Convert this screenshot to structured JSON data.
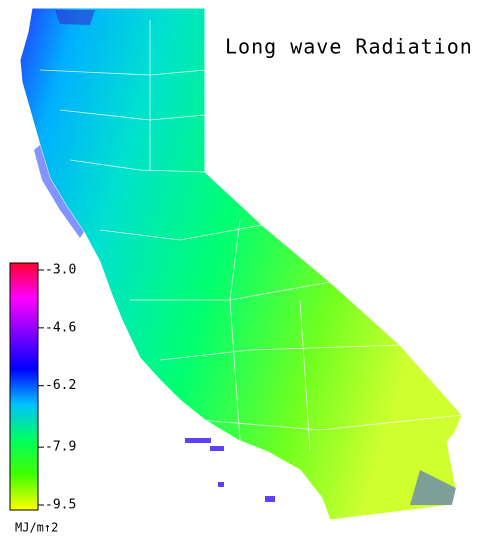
{
  "title": "Long wave Radiation",
  "colorbar": {
    "label": "MJ/m↑2",
    "lim": [
      -9.5,
      -3.0
    ],
    "ticks": [
      {
        "value": -3.0,
        "label": "-3.0"
      },
      {
        "value": -4.6,
        "label": "-4.6"
      },
      {
        "value": -6.2,
        "label": "-6.2"
      },
      {
        "value": -7.9,
        "label": "-7.9"
      },
      {
        "value": -9.5,
        "label": "-9.5"
      }
    ],
    "colors": [
      "#ff0030",
      "#ff00ff",
      "#8000ff",
      "#0000ff",
      "#00c0ff",
      "#00ff60",
      "#40ff00",
      "#ffff00"
    ]
  }
}
